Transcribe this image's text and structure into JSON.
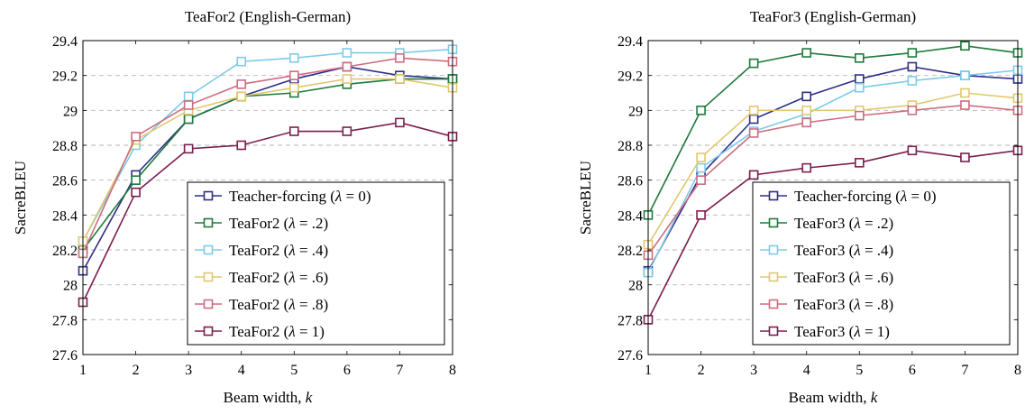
{
  "chart_data": [
    {
      "type": "line",
      "title": "TeaFor2 (English-German)",
      "xlabel": "Beam width, k",
      "ylabel": "SacreBLEU",
      "x": [
        1,
        2,
        3,
        4,
        5,
        6,
        7,
        8
      ],
      "xticks": [
        "1",
        "2",
        "3",
        "4",
        "5",
        "6",
        "7",
        "8"
      ],
      "ylim": [
        27.6,
        29.4
      ],
      "yticks": [
        27.6,
        27.8,
        28,
        28.2,
        28.4,
        28.6,
        28.8,
        29,
        29.2,
        29.4
      ],
      "ytick_labels": [
        "27.6",
        "27.8",
        "28",
        "28.2",
        "28.4",
        "28.6",
        "28.8",
        "29",
        "29.2",
        "29.4"
      ],
      "grid": "horizontal dashed",
      "legend_position": "bottom-right",
      "series": [
        {
          "name": "Teacher-forcing (λ = 0)",
          "color": "#2e2e8a",
          "values": [
            28.08,
            28.63,
            28.95,
            29.08,
            29.18,
            29.25,
            29.2,
            29.18
          ]
        },
        {
          "name": "TeaFor2 (λ = .2)",
          "color": "#1e7a3a",
          "values": [
            28.2,
            28.6,
            28.95,
            29.08,
            29.1,
            29.15,
            29.18,
            29.18
          ]
        },
        {
          "name": "TeaFor2 (λ = .4)",
          "color": "#7ecbe8",
          "values": [
            28.25,
            28.8,
            29.08,
            29.28,
            29.3,
            29.33,
            29.33,
            29.35
          ]
        },
        {
          "name": "TeaFor2 (λ = .6)",
          "color": "#e0c870",
          "values": [
            28.25,
            28.83,
            29.0,
            29.08,
            29.13,
            29.18,
            29.18,
            29.13
          ]
        },
        {
          "name": "TeaFor2 (λ = .8)",
          "color": "#cd6d80",
          "values": [
            28.18,
            28.85,
            29.03,
            29.15,
            29.2,
            29.25,
            29.3,
            29.28
          ]
        },
        {
          "name": "TeaFor2 (λ = 1)",
          "color": "#7b1e4e",
          "values": [
            27.9,
            28.53,
            28.78,
            28.8,
            28.88,
            28.88,
            28.93,
            28.85
          ]
        }
      ]
    },
    {
      "type": "line",
      "title": "TeaFor3 (English-German)",
      "xlabel": "Beam width, k",
      "ylabel": "SacreBLEU",
      "x": [
        1,
        2,
        3,
        4,
        5,
        6,
        7,
        8
      ],
      "xticks": [
        "1",
        "2",
        "3",
        "4",
        "5",
        "6",
        "7",
        "8"
      ],
      "ylim": [
        27.6,
        29.4
      ],
      "yticks": [
        27.6,
        27.8,
        28,
        28.2,
        28.4,
        28.6,
        28.8,
        29,
        29.2,
        29.4
      ],
      "ytick_labels": [
        "27.6",
        "27.8",
        "28",
        "28.2",
        "28.4",
        "28.6",
        "28.8",
        "29",
        "29.2",
        "29.4"
      ],
      "grid": "horizontal dashed",
      "legend_position": "bottom-right",
      "series": [
        {
          "name": "Teacher-forcing (λ = 0)",
          "color": "#2e2e8a",
          "values": [
            28.08,
            28.63,
            28.95,
            29.08,
            29.18,
            29.25,
            29.2,
            29.18
          ]
        },
        {
          "name": "TeaFor3 (λ = .2)",
          "color": "#1e7a3a",
          "values": [
            28.4,
            29.0,
            29.27,
            29.33,
            29.3,
            29.33,
            29.37,
            29.33
          ]
        },
        {
          "name": "TeaFor3 (λ = .4)",
          "color": "#7ecbe8",
          "values": [
            28.07,
            28.67,
            28.88,
            28.98,
            29.13,
            29.17,
            29.2,
            29.23
          ]
        },
        {
          "name": "TeaFor3 (λ = .6)",
          "color": "#e0c870",
          "values": [
            28.23,
            28.73,
            29.0,
            29.0,
            29.0,
            29.03,
            29.1,
            29.07
          ]
        },
        {
          "name": "TeaFor3 (λ = .8)",
          "color": "#cd6d80",
          "values": [
            28.17,
            28.6,
            28.87,
            28.93,
            28.97,
            29.0,
            29.03,
            29.0
          ]
        },
        {
          "name": "TeaFor3 (λ = 1)",
          "color": "#7b1e4e",
          "values": [
            27.8,
            28.4,
            28.63,
            28.67,
            28.7,
            28.77,
            28.73,
            28.77
          ]
        }
      ]
    }
  ]
}
